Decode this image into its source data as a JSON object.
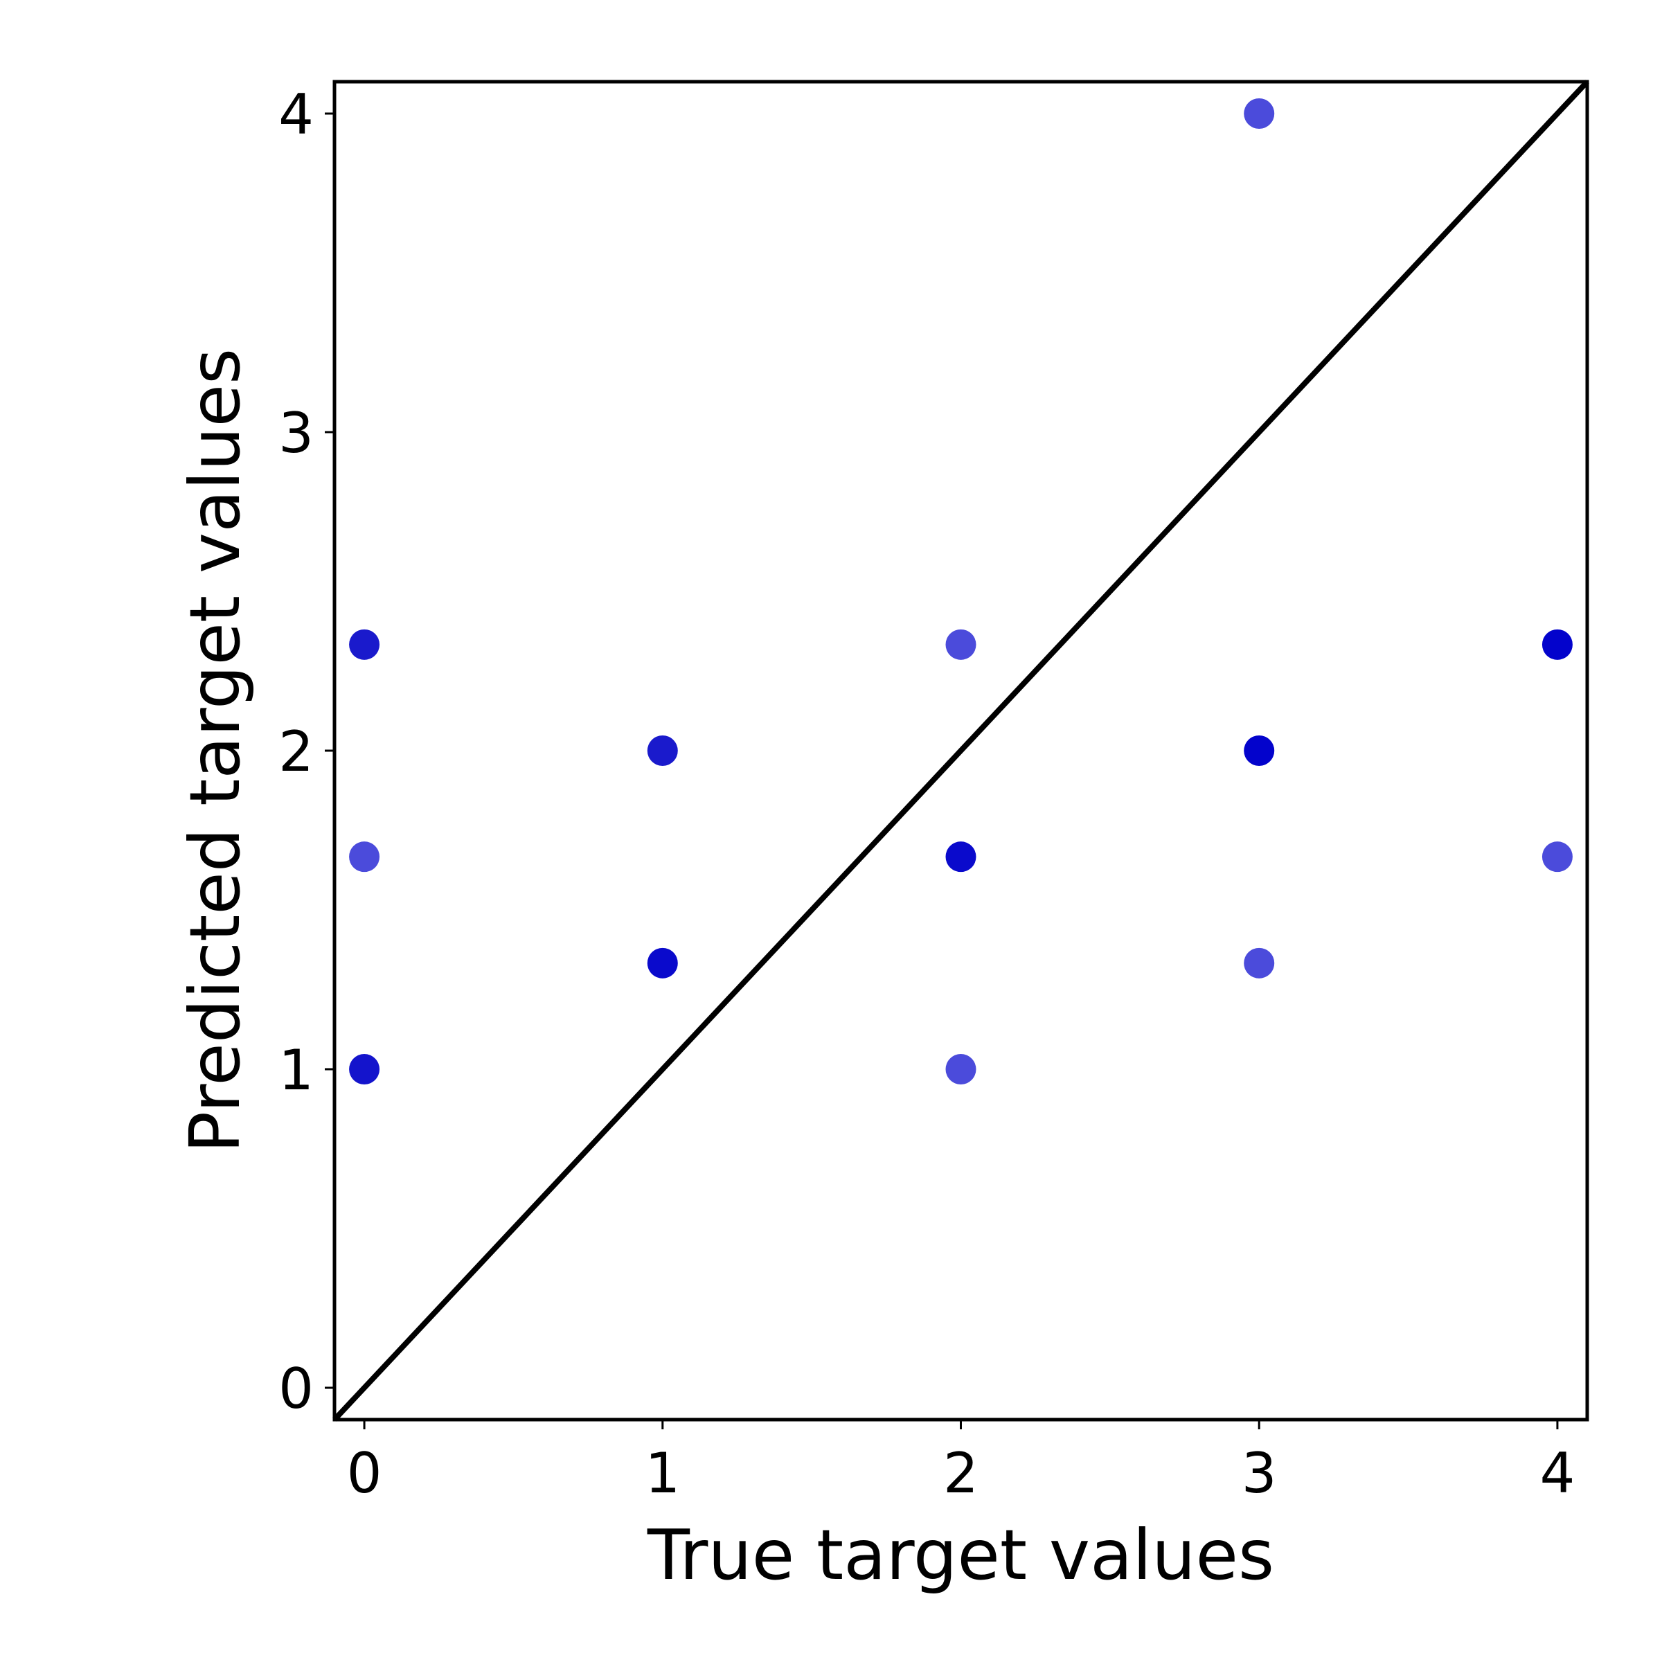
{
  "chart_data": {
    "type": "scatter",
    "title": "",
    "xlabel": "True target values",
    "ylabel": "Predicted target values",
    "xlim": [
      -0.1,
      4.1
    ],
    "ylim": [
      -0.1,
      4.1
    ],
    "x_ticks": [
      0,
      1,
      2,
      3,
      4
    ],
    "y_ticks": [
      0,
      1,
      2,
      3,
      4
    ],
    "x_tick_labels": [
      "0",
      "1",
      "2",
      "3",
      "4"
    ],
    "y_tick_labels": [
      "0",
      "1",
      "2",
      "3",
      "4"
    ],
    "grid": false,
    "reference_line": {
      "from": [
        -0.1,
        -0.1
      ],
      "to": [
        4.1,
        4.1
      ],
      "color": "#000000"
    },
    "points": [
      {
        "x": 0,
        "y": 2.333,
        "color": "#1a1acc"
      },
      {
        "x": 0,
        "y": 1.667,
        "color": "#4b4bdb"
      },
      {
        "x": 0,
        "y": 1.0,
        "color": "#1414cc"
      },
      {
        "x": 1,
        "y": 2.0,
        "color": "#1a1acc"
      },
      {
        "x": 1,
        "y": 1.333,
        "color": "#0a0acc"
      },
      {
        "x": 2,
        "y": 2.333,
        "color": "#4b4bdb"
      },
      {
        "x": 2,
        "y": 1.667,
        "color": "#0a0acc"
      },
      {
        "x": 2,
        "y": 1.0,
        "color": "#4b4bdb"
      },
      {
        "x": 3,
        "y": 4.0,
        "color": "#4b4bdb"
      },
      {
        "x": 3,
        "y": 2.0,
        "color": "#0303cc"
      },
      {
        "x": 3,
        "y": 1.333,
        "color": "#4b4bdb"
      },
      {
        "x": 4,
        "y": 2.333,
        "color": "#0303cc"
      },
      {
        "x": 4,
        "y": 1.667,
        "color": "#4b4bdb"
      }
    ]
  }
}
